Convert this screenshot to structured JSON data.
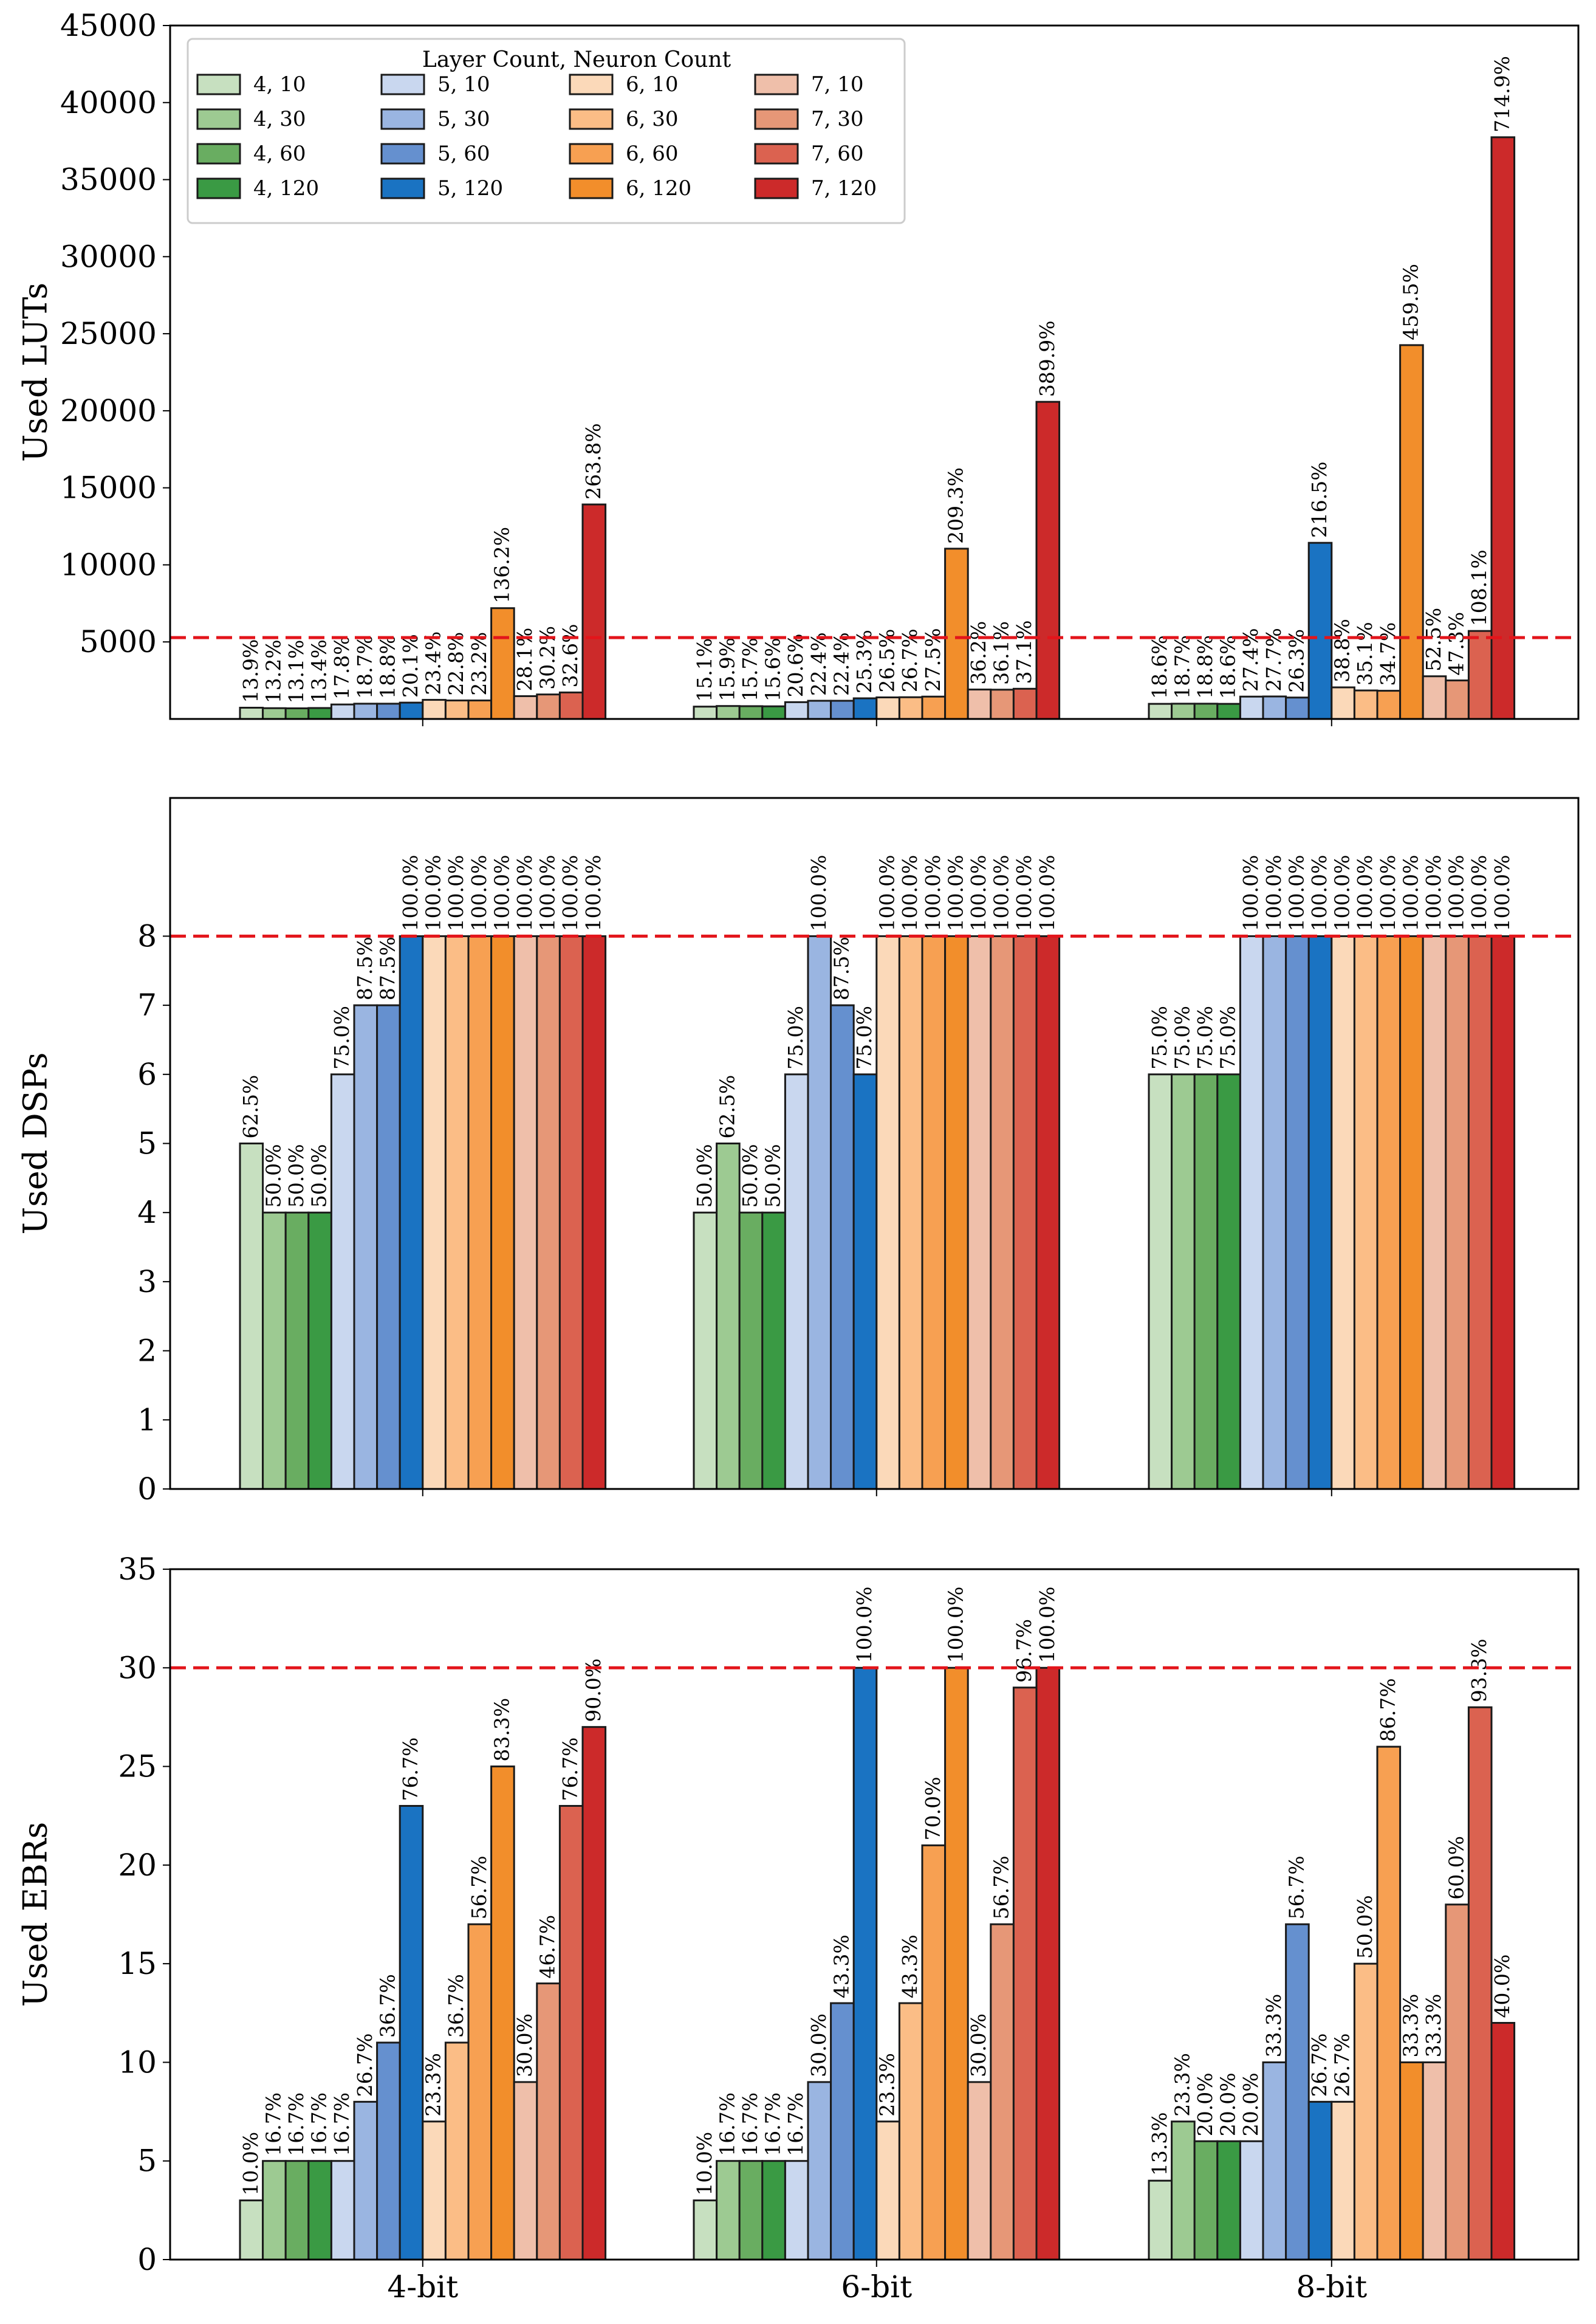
{
  "chart_data": {
    "type": "bar",
    "categories": [
      "4-bit",
      "6-bit",
      "8-bit"
    ],
    "legend_title": "Layer Count, Neuron Count",
    "legend_location": "top-left",
    "series": [
      {
        "name": "4, 10",
        "color": "#c7e0c0"
      },
      {
        "name": "4, 30",
        "color": "#9dca92"
      },
      {
        "name": "4, 60",
        "color": "#69ad61"
      },
      {
        "name": "4, 120",
        "color": "#3a9a44"
      },
      {
        "name": "5, 10",
        "color": "#c9d7ef"
      },
      {
        "name": "5, 30",
        "color": "#9ab5e1"
      },
      {
        "name": "5, 60",
        "color": "#6590cf"
      },
      {
        "name": "5, 120",
        "color": "#1a73c2"
      },
      {
        "name": "6, 10",
        "color": "#fbd9b9"
      },
      {
        "name": "6, 30",
        "color": "#fbbd86"
      },
      {
        "name": "6, 60",
        "color": "#f7a052"
      },
      {
        "name": "6, 120",
        "color": "#f28e2b"
      },
      {
        "name": "7, 10",
        "color": "#efbfaa"
      },
      {
        "name": "7, 30",
        "color": "#e69777"
      },
      {
        "name": "7, 60",
        "color": "#db6250"
      },
      {
        "name": "7, 120",
        "color": "#cc2a2a"
      }
    ],
    "panels": [
      {
        "ylabel": "Used LUTs",
        "ylim": [
          0,
          45000
        ],
        "yticks": [
          5000,
          10000,
          15000,
          20000,
          25000,
          30000,
          35000,
          40000,
          45000
        ],
        "limit_line": 5280,
        "values": [
          [
            730,
            700,
            690,
            710,
            940,
            990,
            990,
            1060,
            1240,
            1200,
            1200,
            7190,
            1480,
            1590,
            1720,
            13920
          ],
          [
            800,
            840,
            830,
            820,
            1090,
            1180,
            1180,
            1340,
            1400,
            1410,
            1450,
            11050,
            1910,
            1900,
            1960,
            20580
          ],
          [
            980,
            990,
            990,
            980,
            1450,
            1460,
            1390,
            11430,
            2050,
            1850,
            1830,
            24260,
            2770,
            2500,
            5710,
            37750
          ]
        ],
        "labels": [
          [
            "13.9%",
            "13.2%",
            "13.1%",
            "13.4%",
            "17.8%",
            "18.7%",
            "18.8%",
            "20.1%",
            "23.4%",
            "22.8%",
            "23.2%",
            "136.2%",
            "28.1%",
            "30.2%",
            "32.6%",
            "263.8%"
          ],
          [
            "15.1%",
            "15.9%",
            "15.7%",
            "15.6%",
            "20.6%",
            "22.4%",
            "22.4%",
            "25.3%",
            "26.5%",
            "26.7%",
            "27.5%",
            "209.3%",
            "36.2%",
            "36.1%",
            "37.1%",
            "389.9%"
          ],
          [
            "18.6%",
            "18.7%",
            "18.8%",
            "18.6%",
            "27.4%",
            "27.7%",
            "26.3%",
            "216.5%",
            "38.8%",
            "35.1%",
            "34.7%",
            "459.5%",
            "52.5%",
            "47.3%",
            "108.1%",
            "714.9%"
          ]
        ]
      },
      {
        "ylabel": "Used DSPs",
        "ylim": [
          0,
          10
        ],
        "yticks": [
          0,
          1,
          2,
          3,
          4,
          5,
          6,
          7,
          8
        ],
        "limit_line": 8,
        "values": [
          [
            5,
            4,
            4,
            4,
            6,
            7,
            7,
            8,
            8,
            8,
            8,
            8,
            8,
            8,
            8,
            8
          ],
          [
            4,
            5,
            4,
            4,
            6,
            8,
            7,
            6,
            8,
            8,
            8,
            8,
            8,
            8,
            8,
            8
          ],
          [
            6,
            6,
            6,
            6,
            8,
            8,
            8,
            8,
            8,
            8,
            8,
            8,
            8,
            8,
            8,
            8
          ]
        ],
        "labels": [
          [
            "62.5%",
            "50.0%",
            "50.0%",
            "50.0%",
            "75.0%",
            "87.5%",
            "87.5%",
            "100.0%",
            "100.0%",
            "100.0%",
            "100.0%",
            "100.0%",
            "100.0%",
            "100.0%",
            "100.0%",
            "100.0%"
          ],
          [
            "50.0%",
            "62.5%",
            "50.0%",
            "50.0%",
            "75.0%",
            "100.0%",
            "87.5%",
            "75.0%",
            "100.0%",
            "100.0%",
            "100.0%",
            "100.0%",
            "100.0%",
            "100.0%",
            "100.0%",
            "100.0%"
          ],
          [
            "75.0%",
            "75.0%",
            "75.0%",
            "75.0%",
            "100.0%",
            "100.0%",
            "100.0%",
            "100.0%",
            "100.0%",
            "100.0%",
            "100.0%",
            "100.0%",
            "100.0%",
            "100.0%",
            "100.0%",
            "100.0%"
          ]
        ]
      },
      {
        "ylabel": "Used EBRs",
        "ylim": [
          0,
          35
        ],
        "yticks": [
          0,
          5,
          10,
          15,
          20,
          25,
          30,
          35
        ],
        "limit_line": 30,
        "values": [
          [
            3,
            5,
            5,
            5,
            5,
            8,
            11,
            23,
            7,
            11,
            17,
            25,
            9,
            14,
            23,
            27
          ],
          [
            3,
            5,
            5,
            5,
            5,
            9,
            13,
            30,
            7,
            13,
            21,
            30,
            9,
            17,
            29,
            30
          ],
          [
            4,
            7,
            6,
            6,
            6,
            10,
            17,
            8,
            8,
            15,
            26,
            10,
            10,
            18,
            28,
            12
          ]
        ],
        "labels": [
          [
            "10.0%",
            "16.7%",
            "16.7%",
            "16.7%",
            "16.7%",
            "26.7%",
            "36.7%",
            "76.7%",
            "23.3%",
            "36.7%",
            "56.7%",
            "83.3%",
            "30.0%",
            "46.7%",
            "76.7%",
            "90.0%"
          ],
          [
            "10.0%",
            "16.7%",
            "16.7%",
            "16.7%",
            "16.7%",
            "30.0%",
            "43.3%",
            "100.0%",
            "23.3%",
            "43.3%",
            "70.0%",
            "100.0%",
            "30.0%",
            "56.7%",
            "96.7%",
            "100.0%"
          ],
          [
            "13.3%",
            "23.3%",
            "20.0%",
            "20.0%",
            "20.0%",
            "33.3%",
            "56.7%",
            "26.7%",
            "26.7%",
            "50.0%",
            "86.7%",
            "33.3%",
            "33.3%",
            "60.0%",
            "93.3%",
            "40.0%"
          ]
        ]
      }
    ]
  }
}
